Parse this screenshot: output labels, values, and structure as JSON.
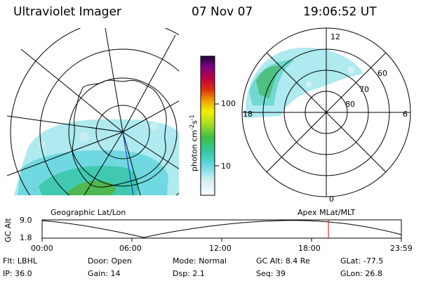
{
  "header": {
    "instrument": "Ultraviolet Imager",
    "date": "07 Nov 07",
    "time": "19:06:52 UT"
  },
  "colorbar": {
    "unit": "photon cm",
    "unit_sup1": "-2",
    "unit_s": "s",
    "unit_sup2": "-1",
    "ticks": [
      "100",
      "10"
    ]
  },
  "right_dial": {
    "mlt_labels": [
      "12",
      "18",
      "6",
      "0"
    ],
    "lat_labels": [
      "60",
      "70",
      "80"
    ]
  },
  "left_map": {
    "label": "Geographic Lat/Lon"
  },
  "right_map": {
    "label": "Apex MLat/MLT"
  },
  "timeline": {
    "ylabel": "GC Alt",
    "y_ticks": [
      "9.0",
      "1.8"
    ],
    "x_ticks": [
      "00:00",
      "06:00",
      "12:00",
      "18:00",
      "23:59"
    ],
    "current_time_fraction": 0.797
  },
  "info": {
    "row1": [
      {
        "label": "Flt:",
        "value": "LBHL"
      },
      {
        "label": "Door:",
        "value": "Open"
      },
      {
        "label": "Mode:",
        "value": "Normal"
      },
      {
        "label": "GC Alt:",
        "value": "8.4 Re"
      },
      {
        "label": "GLat:",
        "value": "-77.5"
      }
    ],
    "row2": [
      {
        "label": "IP:",
        "value": "36.0"
      },
      {
        "label": "Gain:",
        "value": "14"
      },
      {
        "label": "Dsp:",
        "value": "2.1"
      },
      {
        "label": "Seq:",
        "value": "39"
      },
      {
        "label": "GLon:",
        "value": "26.8"
      }
    ]
  },
  "colors": {
    "aurora_cyan": "#9fe8ec",
    "aurora_teal": "#40c8b0",
    "aurora_green": "#40b040",
    "marker": "#e00000"
  }
}
